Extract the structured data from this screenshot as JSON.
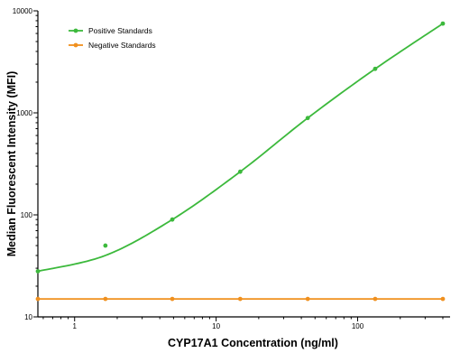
{
  "chart_data": {
    "type": "line",
    "title": "",
    "xlabel": "CYP17A1 Concentration (ng/ml)",
    "ylabel": "Median Fluorescent Intensity (MFI)",
    "x_scale": "log",
    "y_scale": "log",
    "xlim": [
      0.55,
      450
    ],
    "ylim": [
      10,
      10000
    ],
    "x_ticks": [
      1,
      10,
      100
    ],
    "x_tick_labels": [
      "1",
      "10",
      "100"
    ],
    "y_ticks": [
      10,
      100,
      1000,
      10000
    ],
    "y_tick_labels": [
      "10",
      "100",
      "1000",
      "10000"
    ],
    "legend_placement": "top-left",
    "grid": false,
    "series": [
      {
        "name": "Positive Standards",
        "color": "#3cb93c",
        "x": [
          0.55,
          1.65,
          4.9,
          14.8,
          44.4,
          133,
          400
        ],
        "y": [
          28,
          50,
          90,
          265,
          890,
          2700,
          7500
        ],
        "fit": "4PL curve"
      },
      {
        "name": "Negative Standards",
        "color": "#f0901e",
        "x": [
          0.55,
          1.65,
          4.9,
          14.8,
          44.4,
          133,
          400
        ],
        "y": [
          15,
          15,
          15,
          15,
          15,
          15,
          15
        ],
        "fit": "flat line"
      }
    ]
  }
}
